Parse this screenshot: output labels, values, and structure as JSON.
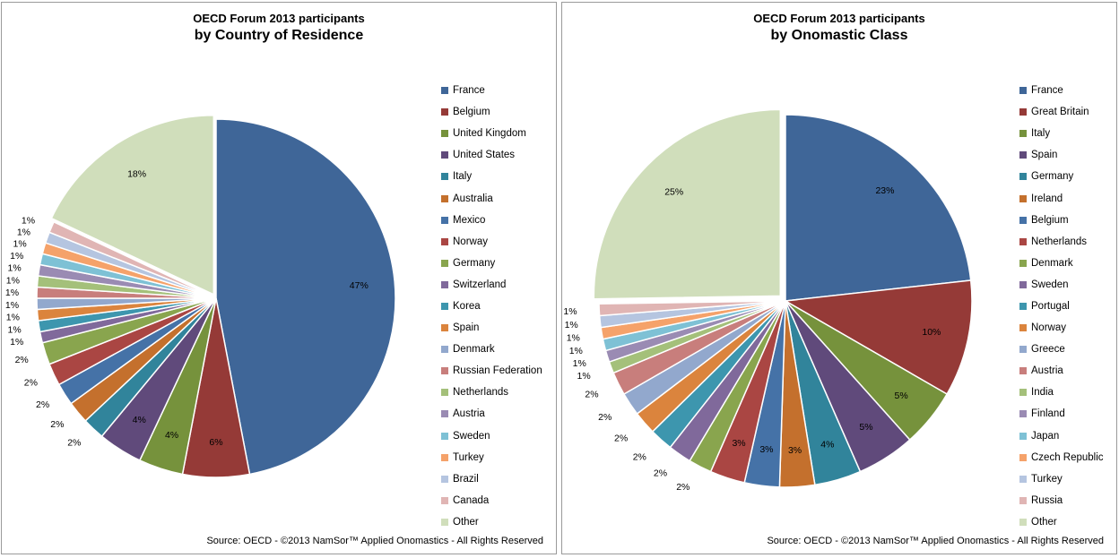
{
  "source": "Source: OECD - ©2013 NamSor™ Applied Onomastics - All Rights Reserved",
  "chart_data": [
    {
      "type": "pie",
      "title": "OECD Forum 2013 participants",
      "subtitle": "by Country of Residence",
      "categories": [
        "France",
        "Belgium",
        "United Kingdom",
        "United States",
        "Italy",
        "Australia",
        "Mexico",
        "Norway",
        "Germany",
        "Switzerland",
        "Korea",
        "Spain",
        "Denmark",
        "Russian Federation",
        "Netherlands",
        "Austria",
        "Sweden",
        "Turkey",
        "Brazil",
        "Canada",
        "Other"
      ],
      "values": [
        47,
        6,
        4,
        4,
        2,
        2,
        2,
        2,
        2,
        1,
        1,
        1,
        1,
        1,
        1,
        1,
        1,
        1,
        1,
        1,
        18
      ],
      "labels": [
        "47%",
        "6%",
        "4%",
        "4%",
        "2%",
        "2%",
        "2%",
        "2%",
        "2%",
        "1%",
        "1%",
        "1%",
        "1%",
        "1%",
        "1%",
        "1%",
        "1%",
        "1%",
        "1%",
        "1%",
        "18%"
      ],
      "colors": [
        "#3F6698",
        "#953A37",
        "#76923C",
        "#604A7B",
        "#31849B",
        "#C4702D",
        "#4572A7",
        "#AA4643",
        "#89A54E",
        "#80699B",
        "#3D96AE",
        "#DB843D",
        "#92A8CD",
        "#C87E7C",
        "#A4C07A",
        "#9A8BB3",
        "#7EC1D5",
        "#F5A26A",
        "#B5C5E0",
        "#E0B5B4",
        "#D0DEBB"
      ],
      "legend": "right"
    },
    {
      "type": "pie",
      "title": "OECD Forum 2013 participants",
      "subtitle": "by Onomastic Class",
      "categories": [
        "France",
        "Great Britain",
        "Italy",
        "Spain",
        "Germany",
        "Ireland",
        "Belgium",
        "Netherlands",
        "Denmark",
        "Sweden",
        "Portugal",
        "Norway",
        "Greece",
        "Austria",
        "India",
        "Finland",
        "Japan",
        "Czech Republic",
        "Turkey",
        "Russia",
        "Other"
      ],
      "values": [
        23,
        10,
        5,
        5,
        4,
        3,
        3,
        3,
        2,
        2,
        2,
        2,
        2,
        2,
        1,
        1,
        1,
        1,
        1,
        1,
        25
      ],
      "labels": [
        "23%",
        "10%",
        "5%",
        "5%",
        "4%",
        "3%",
        "3%",
        "3%",
        "2%",
        "2%",
        "2%",
        "2%",
        "2%",
        "2%",
        "1%",
        "1%",
        "1%",
        "1%",
        "1%",
        "1%",
        "25%"
      ],
      "colors": [
        "#3F6698",
        "#953A37",
        "#76923C",
        "#604A7B",
        "#31849B",
        "#C4702D",
        "#4572A7",
        "#AA4643",
        "#89A54E",
        "#80699B",
        "#3D96AE",
        "#DB843D",
        "#92A8CD",
        "#C87E7C",
        "#A4C07A",
        "#9A8BB3",
        "#7EC1D5",
        "#F5A26A",
        "#B5C5E0",
        "#E0B5B4",
        "#D0DEBB"
      ],
      "legend": "right"
    }
  ]
}
